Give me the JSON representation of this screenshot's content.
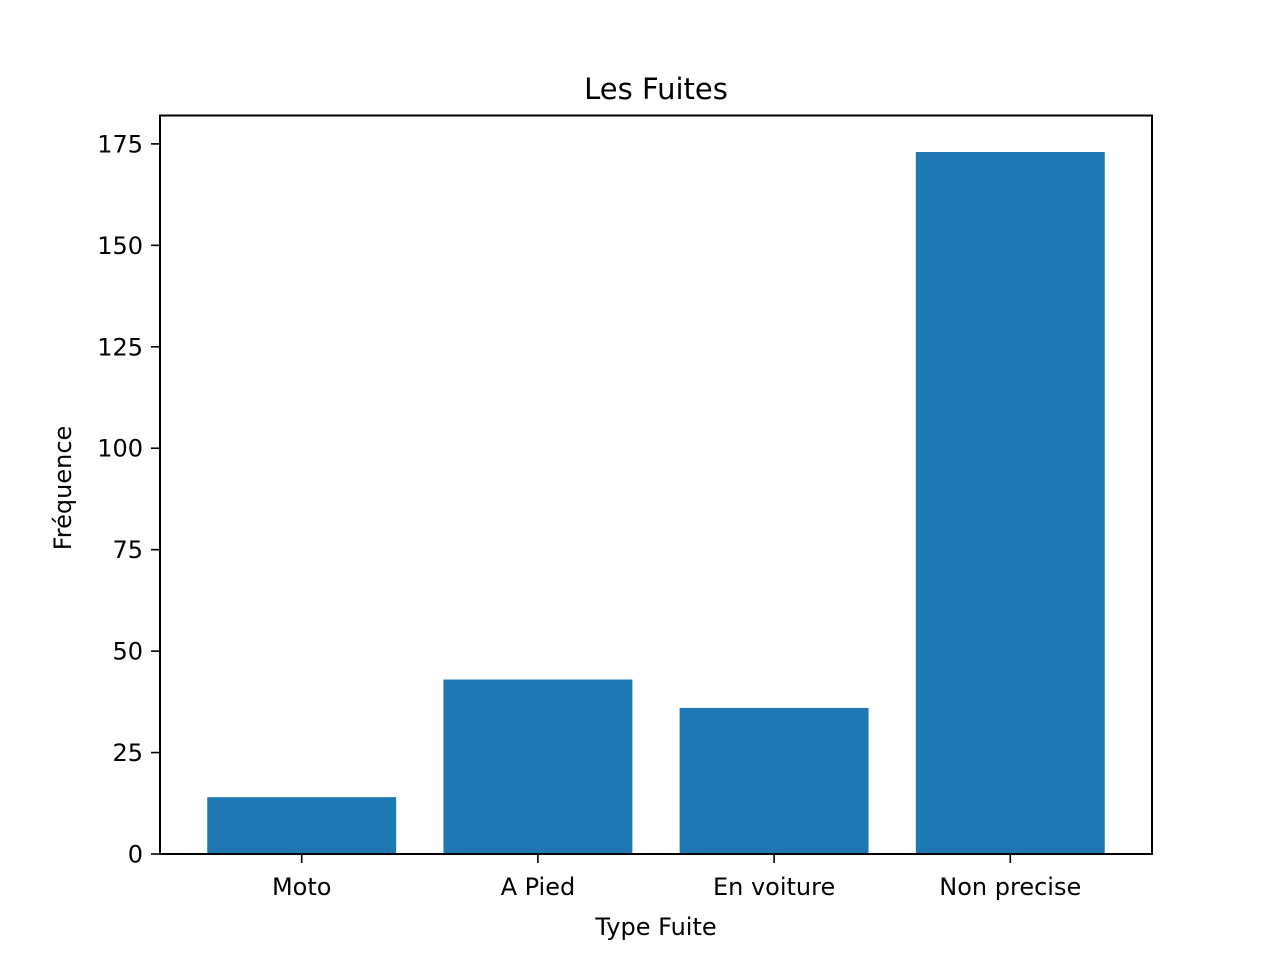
{
  "chart_data": {
    "type": "bar",
    "title": "Les Fuites",
    "xlabel": "Type Fuite",
    "ylabel": "Fréquence",
    "categories": [
      "Moto",
      "A Pied",
      "En voiture",
      "Non precise"
    ],
    "values": [
      14,
      43,
      36,
      173
    ],
    "ylim": [
      0,
      182
    ],
    "yticks": [
      0,
      25,
      50,
      75,
      100,
      125,
      150,
      175
    ],
    "grid": false,
    "legend": "none",
    "bar_color": "#1f77b4"
  }
}
